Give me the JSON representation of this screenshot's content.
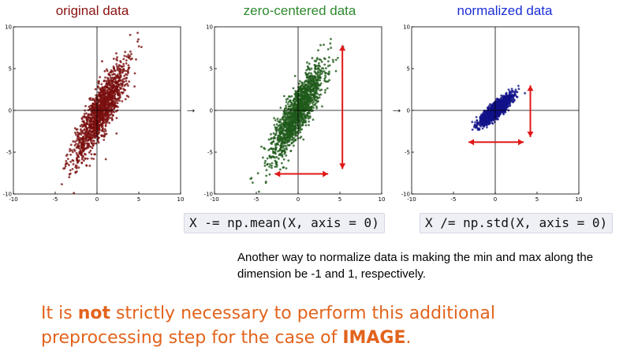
{
  "chart_data": [
    {
      "type": "scatter",
      "title": "original data",
      "title_color": "#8b1313",
      "point_color": "#7a0f0f",
      "xlim": [
        -10,
        10
      ],
      "ylim": [
        -10,
        10
      ],
      "xticks": [
        -10,
        -5,
        0,
        5,
        10
      ],
      "yticks": [
        -10,
        -5,
        0,
        5,
        10
      ],
      "tick_labels": [
        "-10",
        "-5",
        "0",
        "5",
        "10"
      ],
      "distribution": {
        "mean": [
          0.5,
          0.0
        ],
        "std_major": 3.2,
        "std_minor": 0.75,
        "angle_deg": 63,
        "n": 1400
      },
      "annotations": []
    },
    {
      "type": "scatter",
      "title": "zero-centered data",
      "title_color": "#2f8a2f",
      "point_color": "#1f5a1a",
      "xlim": [
        -10,
        10
      ],
      "ylim": [
        -10,
        10
      ],
      "xticks": [
        -10,
        -5,
        0,
        5,
        10
      ],
      "yticks": [
        -10,
        -5,
        0,
        5,
        10
      ],
      "tick_labels": [
        "-10",
        "-5",
        "0",
        "5",
        "10"
      ],
      "distribution": {
        "mean": [
          0.0,
          0.0
        ],
        "std_major": 3.2,
        "std_minor": 0.75,
        "angle_deg": 63,
        "n": 1400
      },
      "annotations": [
        {
          "kind": "double-arrow",
          "color": "#e01818",
          "from": [
            5.3,
            7.8
          ],
          "to": [
            5.3,
            -7.0
          ]
        },
        {
          "kind": "double-arrow",
          "color": "#e01818",
          "from": [
            -2.8,
            -7.6
          ],
          "to": [
            3.6,
            -7.6
          ]
        }
      ]
    },
    {
      "type": "scatter",
      "title": "normalized data",
      "title_color": "#1a2ed6",
      "point_color": "#11118a",
      "xlim": [
        -10,
        10
      ],
      "ylim": [
        -10,
        10
      ],
      "xticks": [
        -10,
        -5,
        0,
        5,
        10
      ],
      "yticks": [
        -10,
        -5,
        0,
        5,
        10
      ],
      "tick_labels": [
        "-10",
        "-5",
        "0",
        "5",
        "10"
      ],
      "distribution": {
        "mean": [
          0.0,
          0.0
        ],
        "std_major": 1.25,
        "std_minor": 0.35,
        "angle_deg": 42,
        "n": 1400
      },
      "annotations": [
        {
          "kind": "double-arrow",
          "color": "#e01818",
          "from": [
            4.2,
            3.0
          ],
          "to": [
            4.2,
            -3.2
          ]
        },
        {
          "kind": "double-arrow",
          "color": "#e01818",
          "from": [
            -3.2,
            -3.8
          ],
          "to": [
            3.4,
            -3.8
          ]
        }
      ]
    }
  ],
  "flow_arrow_glyph": "→",
  "code": {
    "mean": "X -= np.mean(X, axis = 0)",
    "std": "X /= np.std(X, axis = 0)"
  },
  "note": "Another way to normalize data is making the min and max along the dimension be -1 and 1, respectively.",
  "conclusion": {
    "part1": "It is ",
    "bold1": "not",
    "part2": " strictly necessary to perform this additional preprocessing step for the case of ",
    "bold2": "IMAGE",
    "part3": "."
  }
}
